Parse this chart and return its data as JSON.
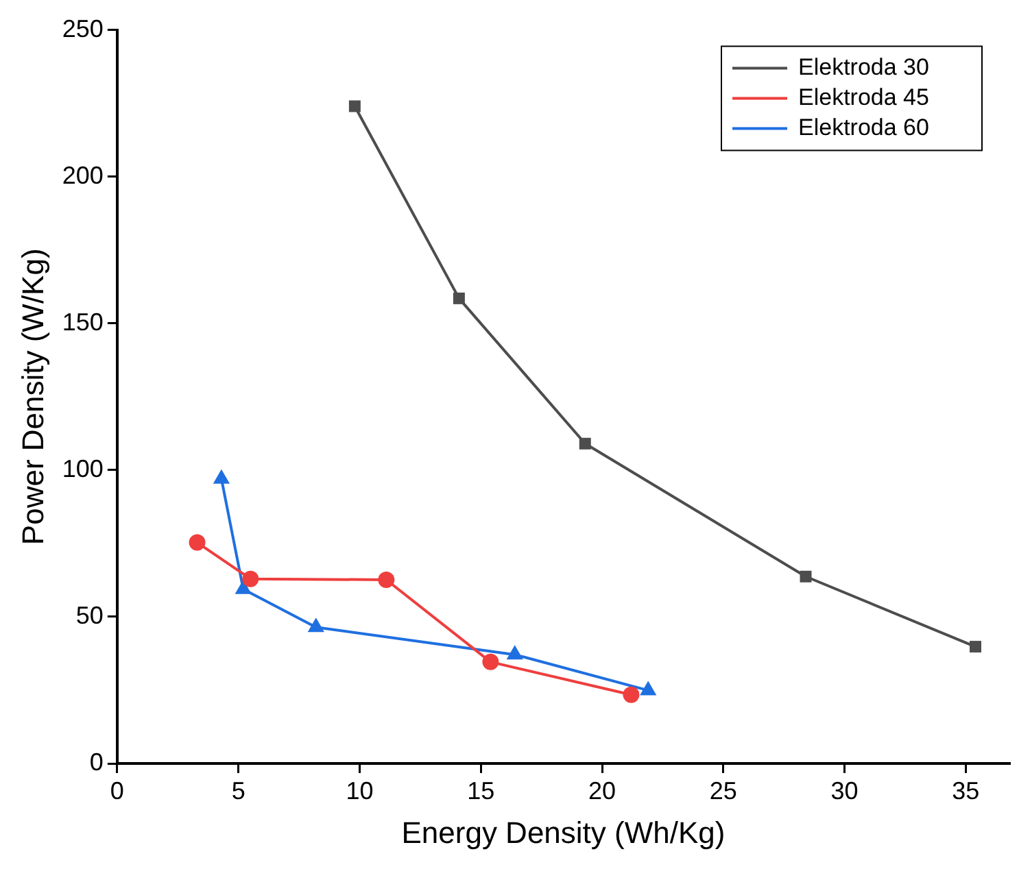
{
  "chart_data": {
    "type": "line",
    "xlabel": "Energy Density (Wh/Kg)",
    "ylabel": "Power Density (W/Kg)",
    "xlim": [
      0,
      36.8
    ],
    "xticks": [
      0,
      5,
      10,
      15,
      20,
      25,
      30,
      35
    ],
    "ylim": [
      0,
      250
    ],
    "yticks": [
      0,
      50,
      100,
      150,
      200,
      250
    ],
    "grid": false,
    "legend": "top right",
    "series": [
      {
        "name": "Elektroda 30",
        "color": "#4d4d4d",
        "marker": "square",
        "x": [
          9.8,
          14.1,
          19.3,
          28.4,
          35.4
        ],
        "values": [
          224,
          158.5,
          109,
          63.7,
          39.8
        ]
      },
      {
        "name": "Elektroda 45",
        "color": "#ef3e3e",
        "marker": "circle",
        "x": [
          3.3,
          5.5,
          11.1,
          15.4,
          21.2
        ],
        "values": [
          75.3,
          62.9,
          62.6,
          34.6,
          23.4
        ]
      },
      {
        "name": "Elektroda 60",
        "color": "#1f6fe0",
        "marker": "triangle",
        "x": [
          4.3,
          5.2,
          8.2,
          16.4,
          21.9
        ],
        "values": [
          97,
          59.4,
          46.4,
          37.1,
          24.9
        ]
      }
    ]
  }
}
